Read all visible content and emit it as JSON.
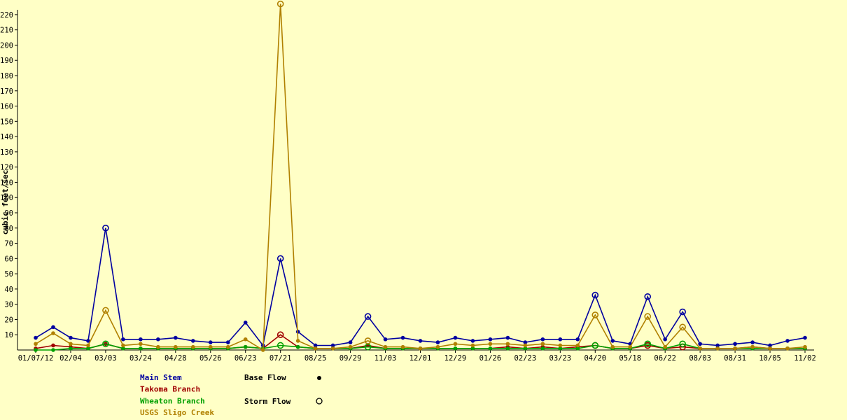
{
  "chart_data": {
    "type": "line",
    "ylabel": "cubic feet/sec",
    "ylim": [
      0,
      225
    ],
    "yticks": [
      10,
      20,
      30,
      40,
      50,
      60,
      70,
      80,
      90,
      100,
      110,
      120,
      130,
      140,
      150,
      160,
      170,
      180,
      190,
      200,
      210,
      220
    ],
    "xtick_labels": [
      "01/07/12",
      "02/04",
      "03/03",
      "03/24",
      "04/28",
      "05/26",
      "06/23",
      "07/21",
      "08/25",
      "09/29",
      "11/03",
      "12/01",
      "12/29",
      "01/26",
      "02/23",
      "03/23",
      "04/20",
      "05/18",
      "06/22",
      "08/03",
      "08/31",
      "10/05",
      "11/02"
    ],
    "n_points": 45,
    "series": [
      {
        "name": "Main Stem",
        "color": "#0000a0",
        "values": [
          8,
          15,
          8,
          6,
          80,
          7,
          7,
          7,
          8,
          6,
          5,
          5,
          18,
          3,
          60,
          12,
          3,
          3,
          5,
          22,
          7,
          8,
          6,
          5,
          8,
          6,
          7,
          8,
          5,
          7,
          7,
          7,
          36,
          6,
          4,
          35,
          7,
          25,
          4,
          3,
          4,
          5,
          3,
          6,
          8
        ],
        "storm": [
          false,
          false,
          false,
          false,
          true,
          false,
          false,
          false,
          false,
          false,
          false,
          false,
          false,
          false,
          true,
          false,
          false,
          false,
          false,
          true,
          false,
          false,
          false,
          false,
          false,
          false,
          false,
          false,
          false,
          false,
          false,
          false,
          true,
          false,
          false,
          true,
          false,
          true,
          false,
          false,
          false,
          false,
          false,
          false,
          false
        ]
      },
      {
        "name": "Takoma Branch",
        "color": "#a00000",
        "values": [
          1,
          3,
          2,
          1,
          4,
          1,
          1,
          1,
          1,
          1,
          1,
          1,
          2,
          1,
          10,
          2,
          1,
          1,
          1,
          3,
          1,
          1,
          1,
          1,
          1,
          1,
          1,
          2,
          1,
          2,
          1,
          2,
          3,
          1,
          1,
          3,
          1,
          2,
          1,
          1,
          1,
          2,
          1,
          1,
          1
        ],
        "storm": [
          false,
          false,
          false,
          false,
          false,
          false,
          false,
          false,
          false,
          false,
          false,
          false,
          false,
          false,
          true,
          false,
          false,
          false,
          false,
          false,
          false,
          false,
          false,
          false,
          false,
          false,
          false,
          false,
          false,
          false,
          false,
          false,
          true,
          false,
          false,
          true,
          false,
          true,
          false,
          false,
          false,
          false,
          false,
          false,
          false
        ]
      },
      {
        "name": "Wheaton Branch",
        "color": "#00a000",
        "values": [
          0,
          0,
          1,
          1,
          4,
          1,
          1,
          1,
          1,
          1,
          1,
          1,
          2,
          1,
          3,
          2,
          1,
          1,
          1,
          2,
          1,
          1,
          1,
          1,
          1,
          1,
          1,
          1,
          1,
          1,
          1,
          1,
          3,
          1,
          1,
          4,
          1,
          4,
          1,
          1,
          1,
          1,
          1,
          1,
          1
        ],
        "storm": [
          false,
          false,
          false,
          false,
          true,
          false,
          false,
          false,
          false,
          false,
          false,
          false,
          false,
          false,
          true,
          false,
          false,
          false,
          false,
          true,
          false,
          false,
          false,
          false,
          false,
          false,
          false,
          false,
          false,
          false,
          false,
          false,
          true,
          false,
          false,
          true,
          false,
          true,
          false,
          false,
          false,
          false,
          false,
          false,
          false
        ]
      },
      {
        "name": "USGS Sligo Creek",
        "color": "#b08000",
        "values": [
          4,
          11,
          4,
          3,
          26,
          3,
          4,
          2,
          2,
          2,
          2,
          2,
          7,
          0,
          227,
          6,
          1,
          1,
          2,
          6,
          2,
          2,
          1,
          2,
          4,
          3,
          4,
          4,
          3,
          4,
          3,
          3,
          23,
          2,
          2,
          22,
          2,
          15,
          1,
          1,
          1,
          2,
          1,
          1,
          2
        ],
        "storm": [
          false,
          false,
          false,
          false,
          true,
          false,
          false,
          false,
          false,
          false,
          false,
          false,
          false,
          false,
          true,
          false,
          false,
          false,
          false,
          true,
          false,
          false,
          false,
          false,
          false,
          false,
          false,
          false,
          false,
          false,
          false,
          false,
          true,
          false,
          false,
          true,
          false,
          true,
          false,
          false,
          false,
          false,
          false,
          false,
          false
        ]
      }
    ],
    "marker_legend": {
      "base": "Base Flow",
      "storm": "Storm Flow"
    }
  }
}
